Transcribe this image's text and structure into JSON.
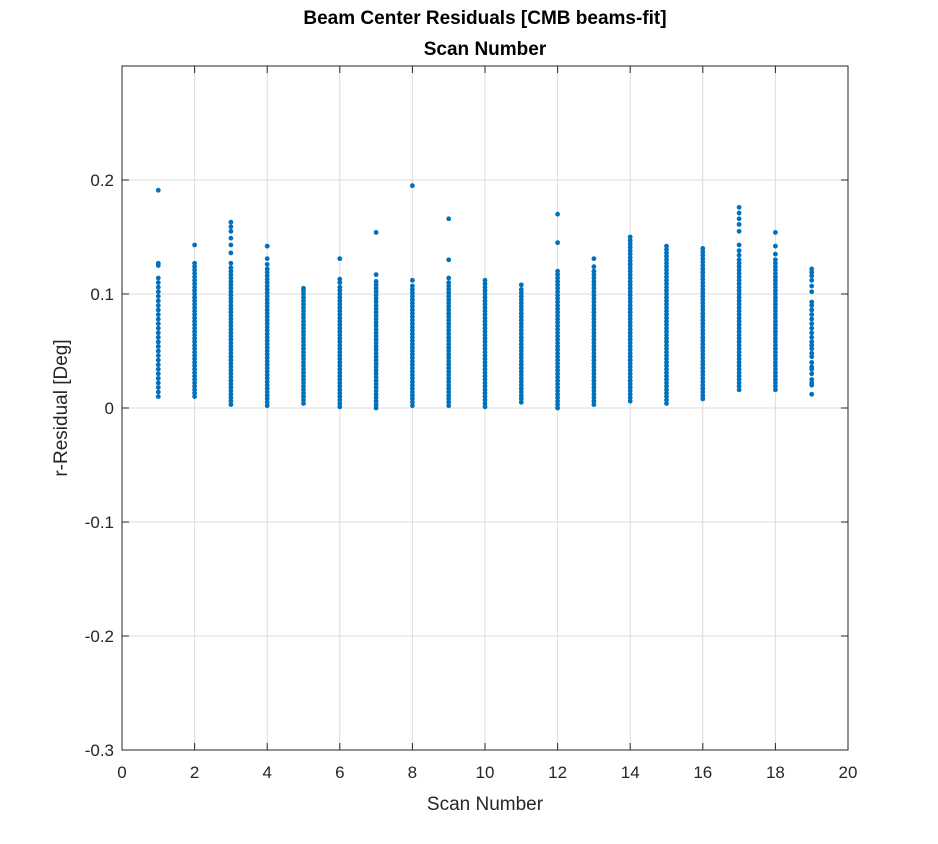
{
  "chart_data": {
    "type": "scatter",
    "title": "Beam Center Residuals [CMB beams-fit]",
    "subtitle": "Scan Number",
    "xlabel": "Scan Number",
    "ylabel": "r-Residual [Deg]",
    "xlim": [
      0,
      20
    ],
    "ylim": [
      -0.3,
      0.3
    ],
    "xticks": [
      0,
      2,
      4,
      6,
      8,
      10,
      12,
      14,
      16,
      18,
      20
    ],
    "yticks": [
      -0.3,
      -0.2,
      -0.1,
      0,
      0.1,
      0.2
    ],
    "ytick_labels": [
      "-0.3",
      "-0.2",
      "-0.1",
      "0",
      "0.1",
      "0.2"
    ],
    "grid": true,
    "marker_color": "#0072BD",
    "series": [
      {
        "points": [
          {
            "x": 1,
            "y": [
              0.01,
              0.014,
              0.018,
              0.022,
              0.026,
              0.03,
              0.034,
              0.038,
              0.042,
              0.046,
              0.05,
              0.054,
              0.058,
              0.062,
              0.066,
              0.07,
              0.074,
              0.078,
              0.082,
              0.086,
              0.09,
              0.094,
              0.098,
              0.102,
              0.106,
              0.11,
              0.114,
              0.125,
              0.127,
              0.191
            ]
          },
          {
            "x": 2,
            "y": [
              0.01,
              0.013,
              0.016,
              0.019,
              0.022,
              0.025,
              0.028,
              0.031,
              0.034,
              0.037,
              0.04,
              0.043,
              0.046,
              0.049,
              0.052,
              0.055,
              0.058,
              0.061,
              0.064,
              0.067,
              0.07,
              0.073,
              0.076,
              0.079,
              0.082,
              0.085,
              0.088,
              0.091,
              0.094,
              0.097,
              0.1,
              0.103,
              0.106,
              0.109,
              0.112,
              0.115,
              0.118,
              0.121,
              0.124,
              0.127,
              0.143
            ]
          },
          {
            "x": 3,
            "y": [
              0.003,
              0.006,
              0.009,
              0.012,
              0.015,
              0.018,
              0.021,
              0.024,
              0.027,
              0.03,
              0.033,
              0.036,
              0.039,
              0.042,
              0.045,
              0.048,
              0.051,
              0.054,
              0.057,
              0.06,
              0.063,
              0.066,
              0.069,
              0.072,
              0.075,
              0.078,
              0.081,
              0.084,
              0.087,
              0.09,
              0.093,
              0.096,
              0.099,
              0.102,
              0.105,
              0.108,
              0.111,
              0.114,
              0.117,
              0.12,
              0.123,
              0.127,
              0.136,
              0.143,
              0.149,
              0.155,
              0.159,
              0.163
            ]
          },
          {
            "x": 4,
            "y": [
              0.002,
              0.005,
              0.008,
              0.011,
              0.014,
              0.017,
              0.02,
              0.023,
              0.026,
              0.029,
              0.032,
              0.035,
              0.038,
              0.041,
              0.044,
              0.047,
              0.05,
              0.053,
              0.056,
              0.059,
              0.062,
              0.065,
              0.068,
              0.071,
              0.074,
              0.077,
              0.08,
              0.083,
              0.086,
              0.089,
              0.092,
              0.095,
              0.098,
              0.101,
              0.104,
              0.107,
              0.11,
              0.113,
              0.116,
              0.119,
              0.122,
              0.126,
              0.131,
              0.142
            ]
          },
          {
            "x": 5,
            "y": [
              0.004,
              0.007,
              0.01,
              0.013,
              0.016,
              0.019,
              0.022,
              0.025,
              0.028,
              0.031,
              0.034,
              0.037,
              0.04,
              0.043,
              0.046,
              0.049,
              0.052,
              0.055,
              0.058,
              0.061,
              0.064,
              0.067,
              0.07,
              0.073,
              0.076,
              0.079,
              0.082,
              0.085,
              0.088,
              0.091,
              0.094,
              0.097,
              0.1,
              0.103,
              0.105
            ]
          },
          {
            "x": 6,
            "y": [
              0.001,
              0.004,
              0.007,
              0.01,
              0.013,
              0.016,
              0.019,
              0.022,
              0.025,
              0.028,
              0.031,
              0.034,
              0.037,
              0.04,
              0.043,
              0.046,
              0.049,
              0.052,
              0.055,
              0.058,
              0.061,
              0.064,
              0.067,
              0.07,
              0.073,
              0.076,
              0.079,
              0.082,
              0.085,
              0.088,
              0.091,
              0.094,
              0.097,
              0.1,
              0.103,
              0.106,
              0.11,
              0.113,
              0.131
            ]
          },
          {
            "x": 7,
            "y": [
              0.0,
              0.003,
              0.006,
              0.009,
              0.012,
              0.015,
              0.018,
              0.021,
              0.024,
              0.027,
              0.03,
              0.033,
              0.036,
              0.039,
              0.042,
              0.045,
              0.048,
              0.051,
              0.054,
              0.057,
              0.06,
              0.063,
              0.066,
              0.069,
              0.072,
              0.075,
              0.078,
              0.081,
              0.084,
              0.087,
              0.09,
              0.093,
              0.096,
              0.099,
              0.102,
              0.105,
              0.108,
              0.111,
              0.117,
              0.154
            ]
          },
          {
            "x": 8,
            "y": [
              0.002,
              0.005,
              0.008,
              0.011,
              0.014,
              0.017,
              0.02,
              0.023,
              0.026,
              0.029,
              0.032,
              0.035,
              0.038,
              0.041,
              0.044,
              0.047,
              0.05,
              0.053,
              0.056,
              0.059,
              0.062,
              0.065,
              0.068,
              0.071,
              0.074,
              0.077,
              0.08,
              0.083,
              0.086,
              0.089,
              0.092,
              0.095,
              0.098,
              0.101,
              0.104,
              0.107,
              0.112,
              0.195
            ]
          },
          {
            "x": 9,
            "y": [
              0.002,
              0.005,
              0.008,
              0.011,
              0.014,
              0.017,
              0.02,
              0.023,
              0.026,
              0.029,
              0.032,
              0.035,
              0.038,
              0.041,
              0.044,
              0.047,
              0.05,
              0.053,
              0.056,
              0.059,
              0.062,
              0.065,
              0.068,
              0.071,
              0.074,
              0.077,
              0.08,
              0.083,
              0.086,
              0.089,
              0.092,
              0.095,
              0.098,
              0.101,
              0.104,
              0.107,
              0.11,
              0.114,
              0.13,
              0.166
            ]
          },
          {
            "x": 10,
            "y": [
              0.001,
              0.004,
              0.007,
              0.01,
              0.013,
              0.016,
              0.019,
              0.022,
              0.025,
              0.028,
              0.031,
              0.034,
              0.037,
              0.04,
              0.043,
              0.046,
              0.049,
              0.052,
              0.055,
              0.058,
              0.061,
              0.064,
              0.067,
              0.07,
              0.073,
              0.076,
              0.079,
              0.082,
              0.085,
              0.088,
              0.091,
              0.094,
              0.097,
              0.1,
              0.103,
              0.106,
              0.109,
              0.112
            ]
          },
          {
            "x": 11,
            "y": [
              0.005,
              0.008,
              0.011,
              0.014,
              0.017,
              0.02,
              0.023,
              0.026,
              0.029,
              0.032,
              0.035,
              0.038,
              0.041,
              0.044,
              0.047,
              0.05,
              0.053,
              0.056,
              0.059,
              0.062,
              0.065,
              0.068,
              0.071,
              0.074,
              0.077,
              0.08,
              0.083,
              0.086,
              0.089,
              0.092,
              0.095,
              0.098,
              0.101,
              0.104,
              0.108
            ]
          },
          {
            "x": 12,
            "y": [
              0.0,
              0.003,
              0.006,
              0.009,
              0.012,
              0.015,
              0.018,
              0.021,
              0.024,
              0.027,
              0.03,
              0.033,
              0.036,
              0.039,
              0.042,
              0.045,
              0.048,
              0.051,
              0.054,
              0.057,
              0.06,
              0.063,
              0.066,
              0.069,
              0.072,
              0.075,
              0.078,
              0.081,
              0.084,
              0.087,
              0.09,
              0.093,
              0.096,
              0.099,
              0.102,
              0.105,
              0.108,
              0.111,
              0.114,
              0.117,
              0.12,
              0.145,
              0.17
            ]
          },
          {
            "x": 13,
            "y": [
              0.003,
              0.006,
              0.009,
              0.012,
              0.015,
              0.018,
              0.021,
              0.024,
              0.027,
              0.03,
              0.033,
              0.036,
              0.039,
              0.042,
              0.045,
              0.048,
              0.051,
              0.054,
              0.057,
              0.06,
              0.063,
              0.066,
              0.069,
              0.072,
              0.075,
              0.078,
              0.081,
              0.084,
              0.087,
              0.09,
              0.093,
              0.096,
              0.099,
              0.102,
              0.105,
              0.108,
              0.111,
              0.114,
              0.117,
              0.12,
              0.124,
              0.131
            ]
          },
          {
            "x": 14,
            "y": [
              0.006,
              0.009,
              0.012,
              0.015,
              0.018,
              0.021,
              0.024,
              0.027,
              0.03,
              0.033,
              0.036,
              0.039,
              0.042,
              0.045,
              0.048,
              0.051,
              0.054,
              0.057,
              0.06,
              0.063,
              0.066,
              0.069,
              0.072,
              0.075,
              0.078,
              0.081,
              0.084,
              0.087,
              0.09,
              0.093,
              0.096,
              0.099,
              0.102,
              0.105,
              0.108,
              0.111,
              0.114,
              0.117,
              0.12,
              0.123,
              0.126,
              0.129,
              0.132,
              0.135,
              0.138,
              0.141,
              0.144,
              0.147,
              0.15
            ]
          },
          {
            "x": 15,
            "y": [
              0.004,
              0.007,
              0.01,
              0.013,
              0.016,
              0.019,
              0.022,
              0.025,
              0.028,
              0.031,
              0.034,
              0.037,
              0.04,
              0.043,
              0.046,
              0.049,
              0.052,
              0.055,
              0.058,
              0.061,
              0.064,
              0.067,
              0.07,
              0.073,
              0.076,
              0.079,
              0.082,
              0.085,
              0.088,
              0.091,
              0.094,
              0.097,
              0.1,
              0.103,
              0.106,
              0.109,
              0.112,
              0.115,
              0.118,
              0.121,
              0.124,
              0.127,
              0.13,
              0.133,
              0.136,
              0.139,
              0.142
            ]
          },
          {
            "x": 16,
            "y": [
              0.008,
              0.011,
              0.014,
              0.017,
              0.02,
              0.023,
              0.026,
              0.029,
              0.032,
              0.035,
              0.038,
              0.041,
              0.044,
              0.047,
              0.05,
              0.053,
              0.056,
              0.059,
              0.062,
              0.065,
              0.068,
              0.071,
              0.074,
              0.077,
              0.08,
              0.083,
              0.086,
              0.089,
              0.092,
              0.095,
              0.098,
              0.101,
              0.104,
              0.107,
              0.11,
              0.113,
              0.116,
              0.119,
              0.122,
              0.125,
              0.128,
              0.131,
              0.134,
              0.137,
              0.14
            ]
          },
          {
            "x": 17,
            "y": [
              0.016,
              0.019,
              0.022,
              0.025,
              0.028,
              0.031,
              0.034,
              0.037,
              0.04,
              0.043,
              0.046,
              0.049,
              0.052,
              0.055,
              0.058,
              0.061,
              0.064,
              0.067,
              0.07,
              0.073,
              0.076,
              0.079,
              0.082,
              0.085,
              0.088,
              0.091,
              0.094,
              0.097,
              0.1,
              0.103,
              0.106,
              0.109,
              0.112,
              0.115,
              0.118,
              0.121,
              0.124,
              0.127,
              0.13,
              0.134,
              0.138,
              0.143,
              0.155,
              0.161,
              0.166,
              0.171,
              0.176
            ]
          },
          {
            "x": 18,
            "y": [
              0.016,
              0.019,
              0.022,
              0.025,
              0.028,
              0.031,
              0.034,
              0.037,
              0.04,
              0.043,
              0.046,
              0.049,
              0.052,
              0.055,
              0.058,
              0.061,
              0.064,
              0.067,
              0.07,
              0.073,
              0.076,
              0.079,
              0.082,
              0.085,
              0.088,
              0.091,
              0.094,
              0.097,
              0.1,
              0.103,
              0.106,
              0.109,
              0.112,
              0.115,
              0.118,
              0.121,
              0.124,
              0.127,
              0.13,
              0.135,
              0.142,
              0.154
            ]
          },
          {
            "x": 19,
            "y": [
              0.012,
              0.02,
              0.022,
              0.025,
              0.03,
              0.034,
              0.036,
              0.04,
              0.045,
              0.048,
              0.052,
              0.055,
              0.058,
              0.062,
              0.066,
              0.07,
              0.074,
              0.078,
              0.082,
              0.086,
              0.09,
              0.093,
              0.102,
              0.107,
              0.112,
              0.116,
              0.119,
              0.122
            ]
          }
        ]
      }
    ]
  }
}
